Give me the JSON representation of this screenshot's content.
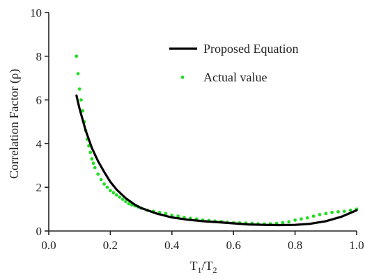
{
  "chart_data": {
    "type": "scatter",
    "xlabel": {
      "main": "T",
      "sub1": "1",
      "slash": "/",
      "main2": "T",
      "sub2": "2"
    },
    "ylabel": "Correlation Factor (ρ)",
    "xlim": [
      0.0,
      1.0
    ],
    "ylim": [
      0,
      10
    ],
    "x_ticks": [
      0.0,
      0.2,
      0.4,
      0.6,
      0.8,
      1.0
    ],
    "x_tick_labels": [
      "0.0",
      "0.2",
      "0.4",
      "0.6",
      "0.8",
      "1.0"
    ],
    "y_ticks": [
      0,
      2,
      4,
      6,
      8,
      10
    ],
    "y_tick_labels": [
      "0",
      "2",
      "4",
      "6",
      "8",
      "10"
    ],
    "grid": false,
    "legend_position": "top-right",
    "series": [
      {
        "name": "Proposed Equation",
        "kind": "line",
        "color": "#000000",
        "x": [
          0.09,
          0.1,
          0.12,
          0.14,
          0.16,
          0.18,
          0.2,
          0.22,
          0.25,
          0.28,
          0.3,
          0.35,
          0.4,
          0.45,
          0.5,
          0.55,
          0.6,
          0.65,
          0.7,
          0.75,
          0.8,
          0.85,
          0.9,
          0.95,
          1.0
        ],
        "y": [
          6.2,
          5.6,
          4.6,
          3.8,
          3.2,
          2.7,
          2.25,
          1.9,
          1.5,
          1.2,
          1.05,
          0.8,
          0.62,
          0.52,
          0.45,
          0.4,
          0.35,
          0.3,
          0.28,
          0.27,
          0.28,
          0.33,
          0.45,
          0.65,
          0.95
        ]
      },
      {
        "name": "Actual value",
        "kind": "scatter",
        "color": "#22dd22",
        "x": [
          0.09,
          0.095,
          0.1,
          0.105,
          0.11,
          0.115,
          0.12,
          0.125,
          0.13,
          0.135,
          0.14,
          0.145,
          0.15,
          0.16,
          0.17,
          0.18,
          0.19,
          0.2,
          0.21,
          0.22,
          0.23,
          0.24,
          0.25,
          0.26,
          0.27,
          0.28,
          0.29,
          0.3,
          0.32,
          0.34,
          0.36,
          0.38,
          0.4,
          0.42,
          0.44,
          0.46,
          0.48,
          0.5,
          0.52,
          0.54,
          0.56,
          0.58,
          0.6,
          0.62,
          0.64,
          0.66,
          0.68,
          0.7,
          0.72,
          0.74,
          0.76,
          0.78,
          0.8,
          0.82,
          0.84,
          0.86,
          0.88,
          0.9,
          0.92,
          0.94,
          0.96,
          0.98,
          1.0
        ],
        "y": [
          8.0,
          7.2,
          6.5,
          6.0,
          5.5,
          5.0,
          4.6,
          4.2,
          3.9,
          3.6,
          3.3,
          3.1,
          2.9,
          2.6,
          2.35,
          2.15,
          2.0,
          1.85,
          1.75,
          1.65,
          1.55,
          1.45,
          1.35,
          1.25,
          1.2,
          1.15,
          1.1,
          1.05,
          0.95,
          0.9,
          0.85,
          0.8,
          0.72,
          0.68,
          0.62,
          0.58,
          0.55,
          0.5,
          0.48,
          0.45,
          0.43,
          0.4,
          0.38,
          0.37,
          0.36,
          0.35,
          0.33,
          0.32,
          0.33,
          0.35,
          0.38,
          0.42,
          0.5,
          0.55,
          0.6,
          0.68,
          0.75,
          0.8,
          0.85,
          0.88,
          0.9,
          0.95,
          1.0
        ]
      }
    ]
  }
}
